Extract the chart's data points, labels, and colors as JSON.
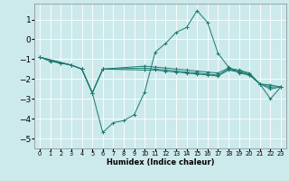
{
  "bg_color": "#cce9ec",
  "grid_color": "#ffffff",
  "line_color": "#1a7a6e",
  "xlabel": "Humidex (Indice chaleur)",
  "xlim": [
    -0.5,
    23.5
  ],
  "ylim": [
    -5.5,
    1.8
  ],
  "yticks": [
    1,
    0,
    -1,
    -2,
    -3,
    -4,
    -5
  ],
  "xticks": [
    0,
    1,
    2,
    3,
    4,
    5,
    6,
    7,
    8,
    9,
    10,
    11,
    12,
    13,
    14,
    15,
    16,
    17,
    18,
    19,
    20,
    21,
    22,
    23
  ],
  "lines": [
    {
      "x": [
        0,
        1,
        2,
        3,
        4,
        5,
        6,
        7,
        8,
        9,
        10,
        11,
        12,
        13,
        14,
        15,
        16,
        17,
        18,
        19,
        20,
        21,
        22,
        23
      ],
      "y": [
        -0.9,
        -1.1,
        -1.2,
        -1.3,
        -1.5,
        -2.7,
        -4.7,
        -4.2,
        -4.1,
        -3.8,
        -2.65,
        -0.65,
        -0.2,
        0.35,
        0.6,
        1.45,
        0.85,
        -0.7,
        -1.4,
        -1.7,
        -1.8,
        -2.25,
        -3.0,
        -2.4
      ]
    },
    {
      "x": [
        0,
        1,
        2,
        3,
        4,
        5,
        6,
        10,
        11,
        12,
        13,
        14,
        15,
        16,
        17,
        18,
        19,
        20,
        21,
        22,
        23
      ],
      "y": [
        -0.9,
        -1.1,
        -1.2,
        -1.3,
        -1.5,
        -2.7,
        -1.5,
        -1.55,
        -1.55,
        -1.6,
        -1.65,
        -1.7,
        -1.75,
        -1.8,
        -1.85,
        -1.55,
        -1.65,
        -1.8,
        -2.25,
        -2.5,
        -2.4
      ]
    },
    {
      "x": [
        0,
        3,
        4,
        5,
        6,
        10,
        11,
        12,
        13,
        14,
        15,
        16,
        17,
        18,
        19,
        20,
        21,
        22,
        23
      ],
      "y": [
        -0.9,
        -1.3,
        -1.5,
        -2.7,
        -1.5,
        -1.45,
        -1.5,
        -1.55,
        -1.6,
        -1.65,
        -1.7,
        -1.75,
        -1.8,
        -1.5,
        -1.6,
        -1.75,
        -2.25,
        -2.4,
        -2.4
      ]
    },
    {
      "x": [
        0,
        3,
        4,
        5,
        6,
        10,
        11,
        12,
        13,
        14,
        15,
        16,
        17,
        18,
        19,
        20,
        21,
        22,
        23
      ],
      "y": [
        -0.9,
        -1.3,
        -1.5,
        -2.7,
        -1.5,
        -1.35,
        -1.4,
        -1.45,
        -1.5,
        -1.55,
        -1.6,
        -1.65,
        -1.7,
        -1.45,
        -1.55,
        -1.7,
        -2.25,
        -2.3,
        -2.4
      ]
    }
  ],
  "xlabel_fontsize": 6.0,
  "ytick_fontsize": 6.5,
  "xtick_fontsize": 4.8
}
